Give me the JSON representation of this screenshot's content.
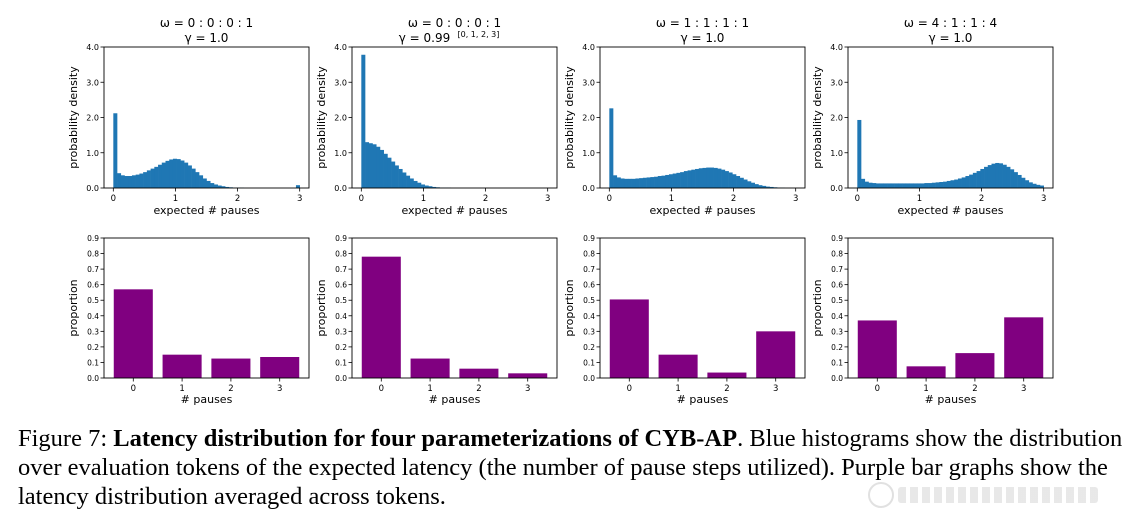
{
  "colors": {
    "histogram": "#1f77b4",
    "bar": "#800080",
    "axis": "#000000"
  },
  "chart_data": [
    {
      "type": "bar",
      "kind": "histogram",
      "panel": 1,
      "title_omega": "ω = 0 : 0 : 0 : 1",
      "title_gamma": "γ = 1.0",
      "gamma_sup": "",
      "xlabel": "expected # pauses",
      "ylabel": "probability density",
      "xlim": [
        -0.15,
        3.15
      ],
      "ylim": [
        0,
        4.0
      ],
      "xticks": [
        0,
        1,
        2,
        3
      ],
      "xtick_labels": [
        "0",
        "1",
        "2",
        "3"
      ],
      "yticks": [
        0,
        1,
        2,
        3,
        4
      ],
      "ytick_labels": [
        "0.0",
        "1.0",
        "2.0",
        "3.0",
        "4.0"
      ],
      "bin_start": 0,
      "bin_width": 0.06,
      "values": [
        2.12,
        0.42,
        0.36,
        0.34,
        0.34,
        0.36,
        0.38,
        0.41,
        0.45,
        0.5,
        0.55,
        0.6,
        0.66,
        0.72,
        0.77,
        0.81,
        0.83,
        0.82,
        0.78,
        0.72,
        0.64,
        0.55,
        0.45,
        0.36,
        0.27,
        0.2,
        0.14,
        0.1,
        0.07,
        0.05,
        0.03,
        0.02,
        0.01,
        0.01,
        0.01,
        0.0,
        0.0,
        0.0,
        0.0,
        0.0,
        0.0,
        0.0,
        0.0,
        0.0,
        0.0,
        0.0,
        0.0,
        0.0,
        0.0,
        0.08
      ]
    },
    {
      "type": "bar",
      "kind": "histogram",
      "panel": 2,
      "title_omega": "ω = 0 : 0 : 0 : 1",
      "title_gamma": "γ = 0.99",
      "gamma_sup": "[0, 1, 2, 3]",
      "xlabel": "expected # pauses",
      "ylabel": "probability density",
      "xlim": [
        -0.15,
        3.15
      ],
      "ylim": [
        0,
        4.0
      ],
      "xticks": [
        0,
        1,
        2,
        3
      ],
      "xtick_labels": [
        "0",
        "1",
        "2",
        "3"
      ],
      "yticks": [
        0,
        1,
        2,
        3,
        4
      ],
      "ytick_labels": [
        "0.0",
        "1.0",
        "2.0",
        "3.0",
        "4.0"
      ],
      "bin_start": 0,
      "bin_width": 0.06,
      "values": [
        3.78,
        1.3,
        1.27,
        1.24,
        1.17,
        1.08,
        0.97,
        0.86,
        0.75,
        0.64,
        0.54,
        0.44,
        0.35,
        0.27,
        0.2,
        0.15,
        0.1,
        0.07,
        0.05,
        0.03,
        0.02,
        0.01,
        0.01,
        0.01,
        0.0,
        0.0,
        0.0,
        0.0,
        0.0,
        0.0,
        0.0,
        0.0,
        0.0,
        0.0,
        0.0,
        0.0,
        0.0,
        0.0,
        0.0,
        0.0,
        0.0,
        0.0,
        0.0,
        0.0,
        0.0,
        0.0,
        0.0,
        0.0,
        0.0,
        0.0
      ]
    },
    {
      "type": "bar",
      "kind": "histogram",
      "panel": 3,
      "title_omega": "ω = 1 : 1 : 1 : 1",
      "title_gamma": "γ = 1.0",
      "gamma_sup": "",
      "xlabel": "expected # pauses",
      "ylabel": "probability density",
      "xlim": [
        -0.15,
        3.15
      ],
      "ylim": [
        0,
        4.0
      ],
      "xticks": [
        0,
        1,
        2,
        3
      ],
      "xtick_labels": [
        "0",
        "1",
        "2",
        "3"
      ],
      "yticks": [
        0,
        1,
        2,
        3,
        4
      ],
      "ytick_labels": [
        "0.0",
        "1.0",
        "2.0",
        "3.0",
        "4.0"
      ],
      "bin_start": 0,
      "bin_width": 0.06,
      "values": [
        2.26,
        0.36,
        0.3,
        0.27,
        0.26,
        0.26,
        0.26,
        0.27,
        0.28,
        0.29,
        0.3,
        0.31,
        0.32,
        0.34,
        0.35,
        0.37,
        0.39,
        0.41,
        0.43,
        0.45,
        0.48,
        0.5,
        0.52,
        0.54,
        0.56,
        0.57,
        0.58,
        0.58,
        0.57,
        0.55,
        0.52,
        0.48,
        0.44,
        0.39,
        0.34,
        0.29,
        0.24,
        0.19,
        0.15,
        0.11,
        0.08,
        0.06,
        0.04,
        0.03,
        0.02,
        0.01,
        0.01,
        0.0,
        0.0,
        0.0
      ]
    },
    {
      "type": "bar",
      "kind": "histogram",
      "panel": 4,
      "title_omega": "ω = 4 : 1 : 1 : 4",
      "title_gamma": "γ = 1.0",
      "gamma_sup": "",
      "xlabel": "expected # pauses",
      "ylabel": "probability density",
      "xlim": [
        -0.15,
        3.15
      ],
      "ylim": [
        0,
        4.0
      ],
      "xticks": [
        0,
        1,
        2,
        3
      ],
      "xtick_labels": [
        "0",
        "1",
        "2",
        "3"
      ],
      "yticks": [
        0,
        1,
        2,
        3,
        4
      ],
      "ytick_labels": [
        "0.0",
        "1.0",
        "2.0",
        "3.0",
        "4.0"
      ],
      "bin_start": 0,
      "bin_width": 0.06,
      "values": [
        1.93,
        0.26,
        0.18,
        0.15,
        0.14,
        0.13,
        0.13,
        0.13,
        0.13,
        0.13,
        0.13,
        0.13,
        0.13,
        0.13,
        0.13,
        0.13,
        0.13,
        0.13,
        0.14,
        0.14,
        0.15,
        0.16,
        0.17,
        0.18,
        0.2,
        0.22,
        0.24,
        0.27,
        0.3,
        0.34,
        0.38,
        0.43,
        0.48,
        0.54,
        0.6,
        0.65,
        0.69,
        0.71,
        0.7,
        0.66,
        0.6,
        0.53,
        0.45,
        0.37,
        0.29,
        0.22,
        0.16,
        0.12,
        0.09,
        0.07
      ]
    },
    {
      "type": "bar",
      "kind": "categorical",
      "panel": 5,
      "xlabel": "# pauses",
      "ylabel": "proportion",
      "categories": [
        "0",
        "1",
        "2",
        "3"
      ],
      "values": [
        0.57,
        0.15,
        0.125,
        0.135
      ],
      "ylim": [
        0,
        0.9
      ],
      "yticks": [
        0,
        0.1,
        0.2,
        0.3,
        0.4,
        0.5,
        0.6,
        0.7,
        0.8,
        0.9
      ],
      "ytick_labels": [
        "0.0",
        "0.1",
        "0.2",
        "0.3",
        "0.4",
        "0.5",
        "0.6",
        "0.7",
        "0.8",
        "0.9"
      ]
    },
    {
      "type": "bar",
      "kind": "categorical",
      "panel": 6,
      "xlabel": "# pauses",
      "ylabel": "proportion",
      "categories": [
        "0",
        "1",
        "2",
        "3"
      ],
      "values": [
        0.78,
        0.125,
        0.06,
        0.03
      ],
      "ylim": [
        0,
        0.9
      ],
      "yticks": [
        0,
        0.1,
        0.2,
        0.3,
        0.4,
        0.5,
        0.6,
        0.7,
        0.8,
        0.9
      ],
      "ytick_labels": [
        "0.0",
        "0.1",
        "0.2",
        "0.3",
        "0.4",
        "0.5",
        "0.6",
        "0.7",
        "0.8",
        "0.9"
      ]
    },
    {
      "type": "bar",
      "kind": "categorical",
      "panel": 7,
      "xlabel": "# pauses",
      "ylabel": "proportion",
      "categories": [
        "0",
        "1",
        "2",
        "3"
      ],
      "values": [
        0.505,
        0.15,
        0.035,
        0.3
      ],
      "ylim": [
        0,
        0.9
      ],
      "yticks": [
        0,
        0.1,
        0.2,
        0.3,
        0.4,
        0.5,
        0.6,
        0.7,
        0.8,
        0.9
      ],
      "ytick_labels": [
        "0.0",
        "0.1",
        "0.2",
        "0.3",
        "0.4",
        "0.5",
        "0.6",
        "0.7",
        "0.8",
        "0.9"
      ]
    },
    {
      "type": "bar",
      "kind": "categorical",
      "panel": 8,
      "xlabel": "# pauses",
      "ylabel": "proportion",
      "categories": [
        "0",
        "1",
        "2",
        "3"
      ],
      "values": [
        0.37,
        0.075,
        0.16,
        0.39
      ],
      "ylim": [
        0,
        0.9
      ],
      "yticks": [
        0,
        0.1,
        0.2,
        0.3,
        0.4,
        0.5,
        0.6,
        0.7,
        0.8,
        0.9
      ],
      "ytick_labels": [
        "0.0",
        "0.1",
        "0.2",
        "0.3",
        "0.4",
        "0.5",
        "0.6",
        "0.7",
        "0.8",
        "0.9"
      ]
    }
  ],
  "caption": {
    "label": "Figure 7:",
    "bold_title": "Latency distribution for four parameterizations of CYB-AP",
    "body": ". Blue histograms show the distribution over evaluation tokens of the expected latency (the number of pause steps utilized). Purple bar graphs show the latency distribution averaged across tokens."
  }
}
